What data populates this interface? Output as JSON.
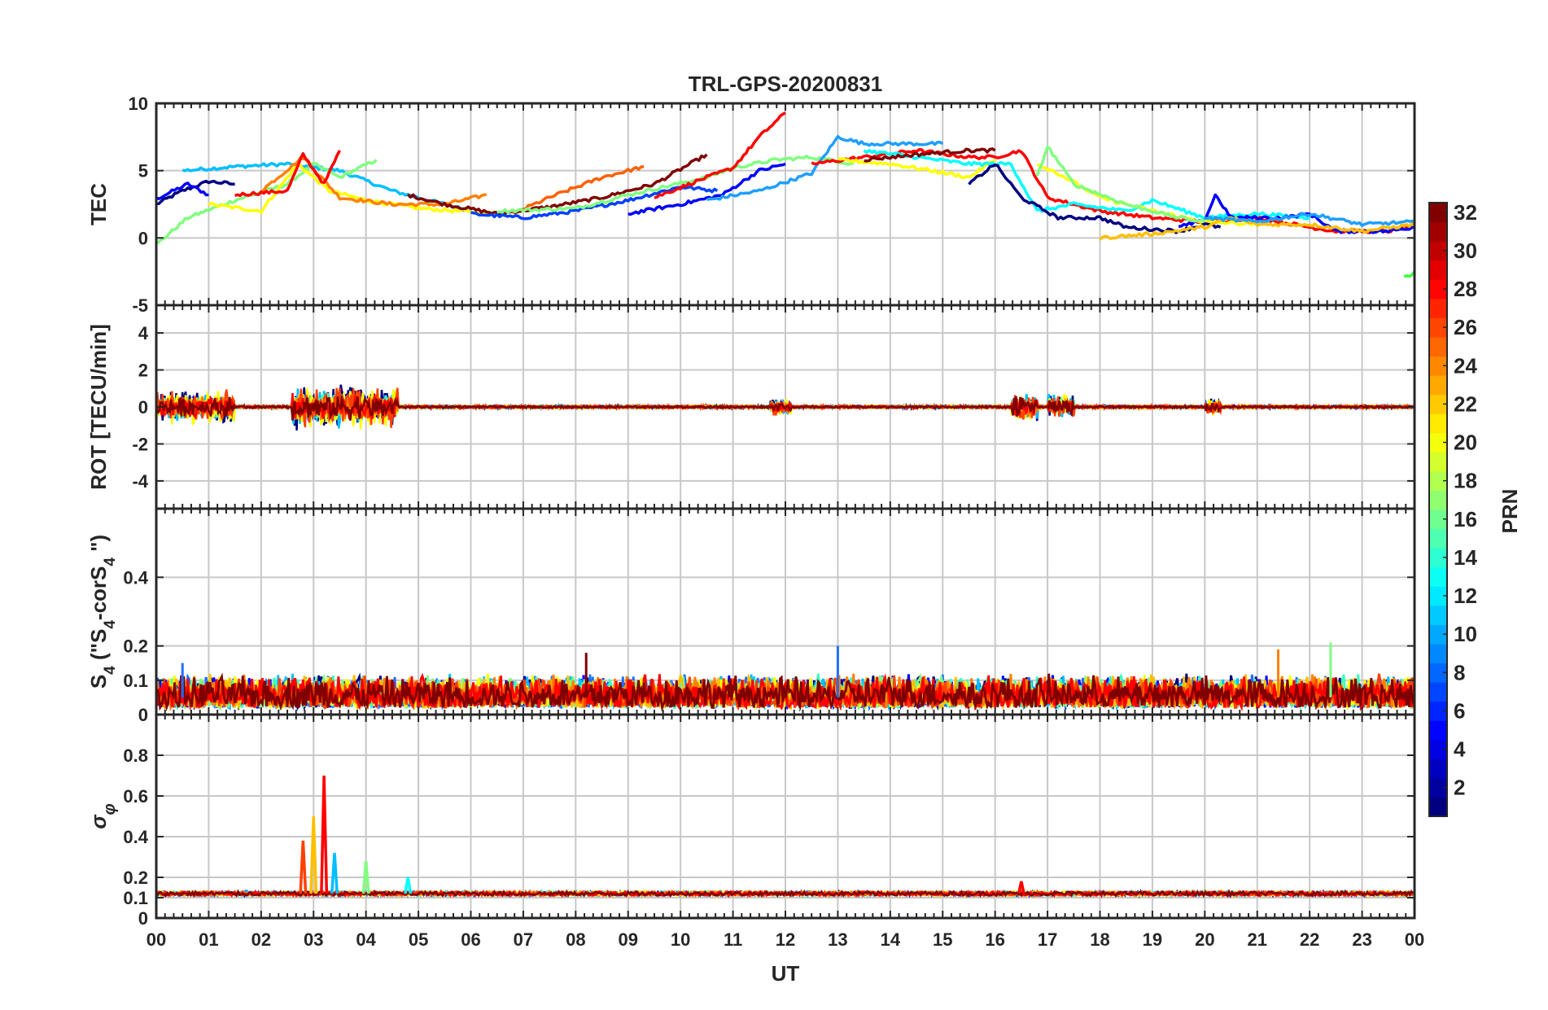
{
  "chart_data": {
    "title": "TRL-GPS-20200831",
    "xlabel": "UT",
    "x_tick_labels": [
      "00",
      "01",
      "02",
      "03",
      "04",
      "05",
      "06",
      "07",
      "08",
      "09",
      "10",
      "11",
      "12",
      "13",
      "14",
      "15",
      "16",
      "17",
      "18",
      "19",
      "20",
      "21",
      "22",
      "23",
      "00"
    ],
    "xlim": [
      0,
      24
    ],
    "colorbar": {
      "label": "PRN",
      "range": [
        1,
        32
      ],
      "tick_labels": [
        "2",
        "4",
        "6",
        "8",
        "10",
        "12",
        "14",
        "16",
        "18",
        "20",
        "22",
        "24",
        "26",
        "28",
        "30",
        "32"
      ],
      "colormap": "jet"
    },
    "panels": [
      {
        "type": "line",
        "ylabel": "TEC",
        "ylim": [
          -5,
          10
        ],
        "y_tick_labels": [
          "-5",
          "0",
          "5",
          "10"
        ],
        "grid": true,
        "series": [
          {
            "color": "#00007f",
            "points": [
              [
                0,
                2.5
              ],
              [
                0.5,
                3.5
              ],
              [
                1.0,
                4.2
              ],
              [
                1.5,
                4.0
              ]
            ]
          },
          {
            "color": "#0000ff",
            "points": [
              [
                0,
                2.9
              ],
              [
                0.6,
                4.0
              ],
              [
                1.0,
                3.2
              ]
            ]
          },
          {
            "color": "#00bfff",
            "points": [
              [
                0.5,
                5
              ],
              [
                1.5,
                5.3
              ],
              [
                2.5,
                5.5
              ],
              [
                3.5,
                5.0
              ],
              [
                4.5,
                3.5
              ],
              [
                5.5,
                2.5
              ],
              [
                6.2,
                1.8
              ]
            ]
          },
          {
            "color": "#80ff80",
            "points": [
              [
                0,
                -0.5
              ],
              [
                0.6,
                1.5
              ],
              [
                1.5,
                2.8
              ],
              [
                2.5,
                4.0
              ],
              [
                3.0,
                5.5
              ],
              [
                3.5,
                4.5
              ],
              [
                4.2,
                5.8
              ]
            ]
          },
          {
            "color": "#ffff00",
            "points": [
              [
                1.0,
                2.5
              ],
              [
                2.0,
                2.0
              ],
              [
                2.7,
                5.5
              ],
              [
                3.3,
                3.5
              ],
              [
                4.0,
                2.8
              ],
              [
                5.0,
                2.2
              ],
              [
                6.5,
                1.8
              ]
            ]
          },
          {
            "color": "#ff8000",
            "points": [
              [
                2.0,
                3.5
              ],
              [
                2.8,
                6.0
              ],
              [
                3.5,
                3.0
              ],
              [
                4.5,
                2.5
              ],
              [
                5.5,
                2.5
              ],
              [
                6.3,
                3.2
              ]
            ]
          },
          {
            "color": "#ff0000",
            "points": [
              [
                1.5,
                3.2
              ],
              [
                2.5,
                3.5
              ],
              [
                2.8,
                6.2
              ],
              [
                3.2,
                4.0
              ],
              [
                3.5,
                6.5
              ]
            ]
          },
          {
            "color": "#7f0000",
            "points": [
              [
                4.8,
                3.2
              ],
              [
                5.5,
                2.5
              ],
              [
                6.5,
                1.8
              ],
              [
                7.5,
                2.3
              ],
              [
                8.5,
                3.0
              ],
              [
                9.5,
                4.0
              ],
              [
                10.5,
                6.2
              ]
            ]
          },
          {
            "color": "#ff6000",
            "points": [
              [
                6.8,
                1.8
              ],
              [
                7.5,
                3.0
              ],
              [
                8.5,
                4.5
              ],
              [
                9.3,
                5.3
              ]
            ]
          },
          {
            "color": "#0040ff",
            "points": [
              [
                6.0,
                1.8
              ],
              [
                7.0,
                1.5
              ],
              [
                8.0,
                2.0
              ],
              [
                9.0,
                2.8
              ],
              [
                10.0,
                3.8
              ],
              [
                10.7,
                3.5
              ]
            ]
          },
          {
            "color": "#80ff80",
            "points": [
              [
                6.5,
                2.0
              ],
              [
                8.0,
                2.2
              ],
              [
                9.0,
                3.2
              ],
              [
                10.5,
                4.5
              ],
              [
                11.0,
                5.2
              ],
              [
                11.8,
                5.8
              ],
              [
                12.5,
                6.0
              ],
              [
                13.3,
                5.5
              ]
            ]
          },
          {
            "color": "#ff0000",
            "points": [
              [
                9.5,
                3.0
              ],
              [
                10.5,
                4.5
              ],
              [
                11.0,
                5.2
              ],
              [
                11.5,
                7.5
              ],
              [
                12.0,
                9.3
              ]
            ]
          },
          {
            "color": "#0000ff",
            "points": [
              [
                9.0,
                1.8
              ],
              [
                10.0,
                2.5
              ],
              [
                10.8,
                3.2
              ],
              [
                11.5,
                5.0
              ],
              [
                12.0,
                5.5
              ]
            ]
          },
          {
            "color": "#1f9fff",
            "points": [
              [
                10.5,
                2.8
              ],
              [
                11.5,
                3.5
              ],
              [
                12.5,
                4.8
              ],
              [
                13.0,
                7.5
              ],
              [
                13.5,
                7.0
              ],
              [
                14.5,
                7.0
              ],
              [
                15.0,
                7.0
              ]
            ]
          },
          {
            "color": "#ff0000",
            "points": [
              [
                12.5,
                5.5
              ],
              [
                13.5,
                6.0
              ],
              [
                14.5,
                6.5
              ],
              [
                15.5,
                6.0
              ],
              [
                16.0,
                6.0
              ],
              [
                16.5,
                6.5
              ],
              [
                17.0,
                3.0
              ],
              [
                18.0,
                2.0
              ],
              [
                19.0,
                1.5
              ],
              [
                20.0,
                1.2
              ],
              [
                21.0,
                1.5
              ],
              [
                22.0,
                0.8
              ],
              [
                22.5,
                0.5
              ],
              [
                23.5,
                0.5
              ],
              [
                24.0,
                1.0
              ]
            ]
          },
          {
            "color": "#ffff00",
            "points": [
              [
                13.0,
                5.8
              ],
              [
                14.0,
                5.5
              ],
              [
                14.8,
                5.0
              ],
              [
                15.5,
                4.5
              ],
              [
                16.0,
                5.8
              ]
            ]
          },
          {
            "color": "#00ffff",
            "points": [
              [
                13.5,
                6.5
              ],
              [
                14.5,
                6.0
              ],
              [
                15.5,
                5.5
              ],
              [
                16.3,
                5.5
              ],
              [
                16.8,
                2.0
              ],
              [
                17.5,
                2.5
              ],
              [
                18.5,
                2.0
              ],
              [
                19.0,
                2.8
              ],
              [
                20.0,
                1.5
              ],
              [
                21.0,
                1.8
              ],
              [
                22.0,
                1.5
              ]
            ]
          },
          {
            "color": "#7f0000",
            "points": [
              [
                13.5,
                5.8
              ],
              [
                14.5,
                6.2
              ],
              [
                15.5,
                6.5
              ],
              [
                16.0,
                6.5
              ]
            ]
          },
          {
            "color": "#00007f",
            "points": [
              [
                15.5,
                4.0
              ],
              [
                16.0,
                5.5
              ],
              [
                16.5,
                3.0
              ],
              [
                17.2,
                1.5
              ],
              [
                18.0,
                1.5
              ],
              [
                18.5,
                0.8
              ],
              [
                19.5,
                0.5
              ],
              [
                20.0,
                1.0
              ],
              [
                20.3,
                0.8
              ]
            ]
          },
          {
            "color": "#0000ff",
            "points": [
              [
                19.5,
                0.8
              ],
              [
                20.0,
                1.3
              ],
              [
                20.2,
                3.2
              ],
              [
                20.5,
                1.5
              ],
              [
                21.5,
                1.5
              ],
              [
                22.0,
                1.8
              ],
              [
                22.5,
                0.5
              ],
              [
                23.5,
                0.5
              ],
              [
                24.0,
                0.8
              ]
            ]
          },
          {
            "color": "#ffff00",
            "points": [
              [
                16.8,
                5.5
              ],
              [
                17.2,
                4.8
              ],
              [
                18.0,
                3.0
              ],
              [
                19.0,
                2.0
              ],
              [
                20.0,
                1.2
              ],
              [
                21.0,
                1.0
              ]
            ]
          },
          {
            "color": "#80ff80",
            "points": [
              [
                16.8,
                4.5
              ],
              [
                17.0,
                6.8
              ],
              [
                17.5,
                4.0
              ],
              [
                18.5,
                2.5
              ],
              [
                19.5,
                1.5
              ],
              [
                20.0,
                1.2
              ]
            ]
          },
          {
            "color": "#ffbf00",
            "points": [
              [
                18.0,
                0
              ],
              [
                19.0,
                0.3
              ],
              [
                20.0,
                0.8
              ],
              [
                20.5,
                1.5
              ],
              [
                21.0,
                1.0
              ],
              [
                22.0,
                1.0
              ],
              [
                23.0,
                0.5
              ],
              [
                24.0,
                1.0
              ]
            ]
          },
          {
            "color": "#1f9fff",
            "points": [
              [
                20.0,
                1.5
              ],
              [
                21.0,
                1.2
              ],
              [
                22.0,
                1.8
              ],
              [
                23.0,
                1.0
              ],
              [
                24.0,
                1.2
              ]
            ]
          },
          {
            "color": "#40ff40",
            "points": [
              [
                23.8,
                -3.0
              ],
              [
                24.0,
                -2.5
              ]
            ]
          }
        ]
      },
      {
        "type": "line",
        "ylabel": "ROT [TECU/min]",
        "ylim": [
          -5.5,
          5.5
        ],
        "y_tick_labels": [
          "-4",
          "-2",
          "0",
          "2",
          "4"
        ],
        "grid": true,
        "baseline": 0,
        "bursts": [
          {
            "x": [
              0,
              1.5
            ],
            "amp": 1.0
          },
          {
            "x": [
              2.6,
              4.6
            ],
            "amp": 1.3
          },
          {
            "x": [
              16.3,
              16.8
            ],
            "amp": 1.0
          },
          {
            "x": [
              17.0,
              17.5
            ],
            "amp": 0.8
          },
          {
            "x": [
              20.0,
              20.3
            ],
            "amp": 0.5
          },
          {
            "x": [
              11.7,
              12.1
            ],
            "amp": 0.5
          }
        ]
      },
      {
        "type": "line",
        "ylabel": "S4 (\"S4-corS4\")",
        "ylim": [
          0,
          0.6
        ],
        "y_tick_labels": [
          "0",
          "0.1",
          "0.2",
          "0.4"
        ],
        "grid": true,
        "baseline_range": [
          0.02,
          0.12
        ],
        "peaks": [
          {
            "x": 13.0,
            "value": 0.2
          },
          {
            "x": 22.4,
            "value": 0.21
          },
          {
            "x": 21.4,
            "value": 0.19
          },
          {
            "x": 8.2,
            "value": 0.18
          },
          {
            "x": 0.5,
            "value": 0.15
          }
        ]
      },
      {
        "type": "line",
        "ylabel": "σφ",
        "ylim": [
          0,
          1.0
        ],
        "y_tick_labels": [
          "0",
          "0.1",
          "0.2",
          "0.4",
          "0.6",
          "0.8"
        ],
        "grid": true,
        "baseline": 0.12,
        "peaks": [
          {
            "x": 3.2,
            "value": 0.7
          },
          {
            "x": 3.0,
            "value": 0.5
          },
          {
            "x": 2.8,
            "value": 0.38
          },
          {
            "x": 3.4,
            "value": 0.32
          },
          {
            "x": 4.0,
            "value": 0.28
          },
          {
            "x": 4.8,
            "value": 0.2
          },
          {
            "x": 16.5,
            "value": 0.18
          }
        ]
      }
    ]
  }
}
